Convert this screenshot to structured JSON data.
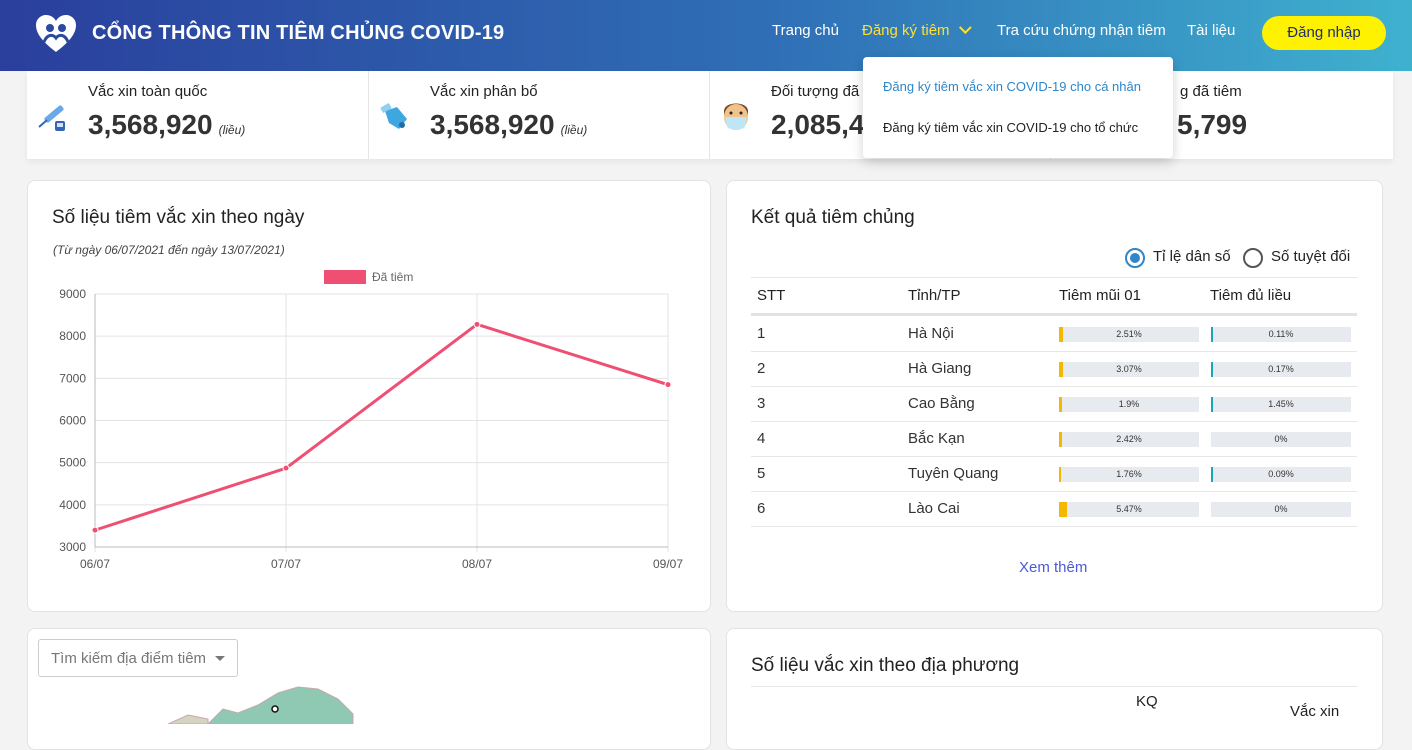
{
  "header": {
    "title": "CỔNG THÔNG TIN TIÊM CHỦNG COVID-19",
    "nav": [
      "Trang chủ",
      "Đăng ký tiêm",
      "Tra cứu chứng nhận tiêm",
      "Tài liệu"
    ],
    "login": "Đăng nhập",
    "accent_color": "#fff200"
  },
  "dropdown": {
    "items": [
      "Đăng ký tiêm vắc xin COVID-19 cho cá nhân",
      "Đăng ký tiêm vắc xin COVID-19 cho tổ chức"
    ]
  },
  "stats": [
    {
      "label": "Vắc xin toàn quốc",
      "value": "3,568,920",
      "unit": "(liều)",
      "icon": "vaccine-syringe-icon"
    },
    {
      "label": "Vắc xin phân bổ",
      "value": "3,568,920",
      "unit": "(liều)",
      "icon": "gloved-hand-icon"
    },
    {
      "label": "Đối tượng đã",
      "value": "2,085,4",
      "unit": "",
      "icon": "masked-person-icon"
    },
    {
      "label": "g đã tiêm",
      "value": "5,799",
      "unit": "",
      "icon": ""
    }
  ],
  "daily_chart": {
    "title": "Số liệu tiêm vắc xin theo ngày",
    "range_note": "(Từ ngày 06/07/2021 đến ngày 13/07/2021)",
    "legend": "Đã tiêm",
    "line_color": "#ee4f72"
  },
  "chart_data": {
    "type": "line",
    "categories": [
      "06/07",
      "07/07",
      "08/07",
      "09/07"
    ],
    "series": [
      {
        "name": "Đã tiêm",
        "values": [
          3400,
          4870,
          8280,
          6850
        ]
      }
    ],
    "ylim": [
      3000,
      9000
    ],
    "yticks": [
      3000,
      4000,
      5000,
      6000,
      7000,
      8000,
      9000
    ],
    "title": "",
    "xlabel": "",
    "ylabel": "",
    "grid": true,
    "legend_position": "top"
  },
  "results": {
    "title": "Kết quả tiêm chủng",
    "radio_options": [
      "Tỉ lệ dân số",
      "Số tuyệt đối"
    ],
    "selected": 0,
    "columns": [
      "STT",
      "Tỉnh/TP",
      "Tiêm mũi 01",
      "Tiêm đủ liều"
    ],
    "rows": [
      {
        "stt": "1",
        "province": "Hà Nội",
        "dose1": "2.51%",
        "dose1_value": 2.51,
        "full": "0.11%",
        "full_value": 0.11
      },
      {
        "stt": "2",
        "province": "Hà Giang",
        "dose1": "3.07%",
        "dose1_value": 3.07,
        "full": "0.17%",
        "full_value": 0.17
      },
      {
        "stt": "3",
        "province": "Cao Bằng",
        "dose1": "1.9%",
        "dose1_value": 1.9,
        "full": "1.45%",
        "full_value": 1.45
      },
      {
        "stt": "4",
        "province": "Bắc Kạn",
        "dose1": "2.42%",
        "dose1_value": 2.42,
        "full": "0%",
        "full_value": 0
      },
      {
        "stt": "5",
        "province": "Tuyên Quang",
        "dose1": "1.76%",
        "dose1_value": 1.76,
        "full": "0.09%",
        "full_value": 0.09
      },
      {
        "stt": "6",
        "province": "Lào Cai",
        "dose1": "5.47%",
        "dose1_value": 5.47,
        "full": "0%",
        "full_value": 0
      }
    ],
    "dose1_color": "#f5b800",
    "full_color": "#1aa6b7",
    "see_more": "Xem thêm"
  },
  "map_panel": {
    "search_placeholder": "Tìm kiếm địa điểm tiêm"
  },
  "local_panel": {
    "title": "Số liệu vắc xin theo địa phương",
    "partial_header": [
      "KQ",
      "Vắc xin"
    ]
  }
}
